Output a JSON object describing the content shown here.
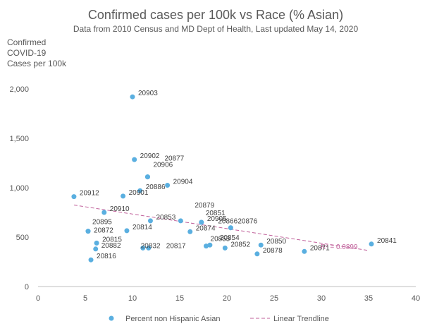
{
  "chart_data": {
    "type": "scatter",
    "title": "Confirmed cases per 100k vs Race (% Asian)",
    "subtitle": "Data from 2010 Census and MD Dept of Health, Last updated May 14, 2020",
    "ylabel_lines": [
      "Confirmed",
      "COVID-19",
      "Cases per 100k"
    ],
    "xlim": [
      0,
      40
    ],
    "ylim": [
      0,
      2200
    ],
    "x_ticks": [
      "0",
      "5",
      "10",
      "15",
      "20",
      "25",
      "30",
      "35",
      "40"
    ],
    "y_ticks": [
      "0",
      "500",
      "1,000",
      "1,500",
      "2,000"
    ],
    "grid": false,
    "legend_position": "bottom",
    "series": [
      {
        "name": "Percent non Hispanic Asian",
        "color": "#5aafe0",
        "points": [
          {
            "label": "20903",
            "x": 10.0,
            "y": 1920
          },
          {
            "label": "20902",
            "x": 10.2,
            "y": 1285
          },
          {
            "label": "20877",
            "x": 11.6,
            "y": 1110
          },
          {
            "label": "20906",
            "x": 11.6,
            "y": 1110
          },
          {
            "label": "20904",
            "x": 13.7,
            "y": 1025
          },
          {
            "label": "20886",
            "x": 10.8,
            "y": 970
          },
          {
            "label": "20901",
            "x": 9.0,
            "y": 915
          },
          {
            "label": "20912",
            "x": 3.8,
            "y": 910
          },
          {
            "label": "20910",
            "x": 7.0,
            "y": 750
          },
          {
            "label": "20853",
            "x": 11.9,
            "y": 665
          },
          {
            "label": "20879",
            "x": 15.1,
            "y": 665
          },
          {
            "label": "20851",
            "x": 17.3,
            "y": 650
          },
          {
            "label": "20905",
            "x": 17.3,
            "y": 650
          },
          {
            "label": "20866",
            "x": 20.4,
            "y": 595
          },
          {
            "label": "20876",
            "x": 20.4,
            "y": 595
          },
          {
            "label": "20895",
            "x": 5.3,
            "y": 560
          },
          {
            "label": "20872",
            "x": 5.3,
            "y": 560
          },
          {
            "label": "20814",
            "x": 9.4,
            "y": 565
          },
          {
            "label": "20874",
            "x": 16.1,
            "y": 555
          },
          {
            "label": "20815",
            "x": 6.2,
            "y": 440
          },
          {
            "label": "20882",
            "x": 6.1,
            "y": 380
          },
          {
            "label": "20832",
            "x": 11.1,
            "y": 390
          },
          {
            "label": "20817",
            "x": 11.7,
            "y": 390
          },
          {
            "label": "20855",
            "x": 17.8,
            "y": 410
          },
          {
            "label": "20854",
            "x": 18.2,
            "y": 420
          },
          {
            "label": "20852",
            "x": 19.8,
            "y": 390
          },
          {
            "label": "20850",
            "x": 23.6,
            "y": 420
          },
          {
            "label": "20878",
            "x": 23.2,
            "y": 330
          },
          {
            "label": "20871",
            "x": 28.2,
            "y": 355
          },
          {
            "label": "20841",
            "x": 35.3,
            "y": 430
          },
          {
            "label": "20816",
            "x": 5.6,
            "y": 270
          }
        ]
      }
    ],
    "trendline": {
      "name": "Linear Trendline",
      "color": "#c0609a",
      "x": [
        3.8,
        35.0
      ],
      "y": [
        825,
        365
      ],
      "r2_label": "R² = 0.0899"
    }
  }
}
